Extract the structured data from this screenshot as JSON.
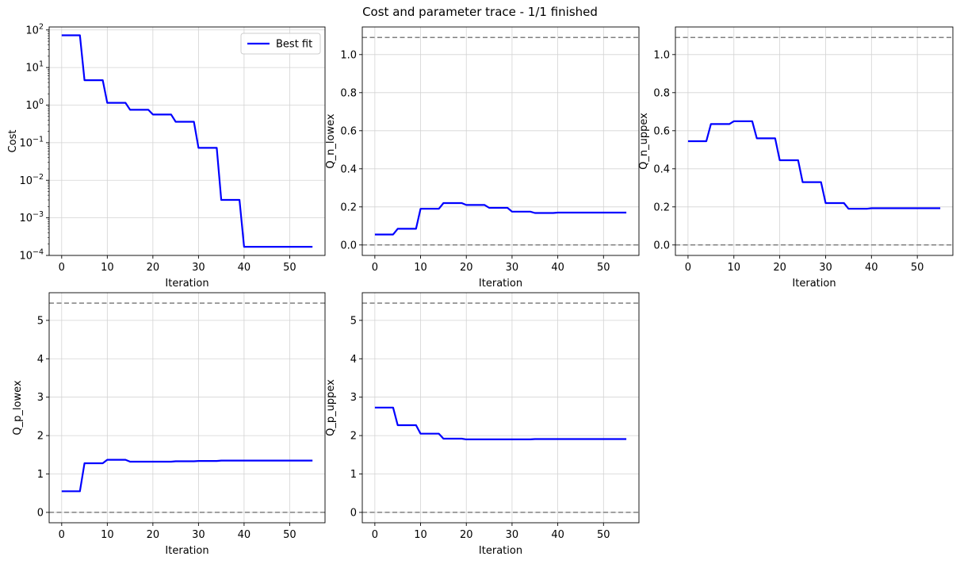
{
  "figure": {
    "suptitle": "Cost and parameter trace - 1/1 finished"
  },
  "colors": {
    "series": "#0000ff",
    "bounds": "#808080",
    "grid": "#d3d3d3"
  },
  "chart_data": [
    {
      "type": "line",
      "xlabel": "Iteration",
      "ylabel": "Cost",
      "yscale": "log",
      "xlim": [
        -2.75,
        57.75
      ],
      "ylim": [
        0.0001,
        120
      ],
      "xticks": [
        0,
        10,
        20,
        30,
        40,
        50
      ],
      "yticks": [
        0.0001,
        0.001,
        0.01,
        0.1,
        1,
        10,
        100
      ],
      "ytick_labels": [
        "10^-4",
        "10^-3",
        "10^-2",
        "10^-1",
        "10^0",
        "10^1",
        "10^2"
      ],
      "grid": true,
      "legend": {
        "position": "top-right",
        "entries": [
          "Best fit"
        ]
      },
      "series": [
        {
          "name": "Best fit",
          "x": [
            0,
            4,
            5,
            9,
            10,
            14,
            15,
            19,
            20,
            24,
            25,
            29,
            30,
            34,
            35,
            39,
            40,
            55
          ],
          "y": [
            72,
            72,
            4.6,
            4.6,
            1.15,
            1.15,
            0.75,
            0.75,
            0.56,
            0.56,
            0.36,
            0.36,
            0.073,
            0.073,
            0.003,
            0.003,
            0.00017,
            0.00017
          ]
        }
      ],
      "hlines": []
    },
    {
      "type": "line",
      "xlabel": "Iteration",
      "ylabel": "Q_n_lowex",
      "yscale": "linear",
      "xlim": [
        -2.75,
        57.75
      ],
      "ylim": [
        -0.055,
        1.145
      ],
      "xticks": [
        0,
        10,
        20,
        30,
        40,
        50
      ],
      "yticks": [
        0.0,
        0.2,
        0.4,
        0.6,
        0.8,
        1.0
      ],
      "ytick_labels": [
        "0.0",
        "0.2",
        "0.4",
        "0.6",
        "0.8",
        "1.0"
      ],
      "grid": true,
      "series": [
        {
          "x": [
            0,
            4,
            5,
            9,
            10,
            14,
            15,
            19,
            20,
            24,
            25,
            29,
            30,
            34,
            35,
            39,
            40,
            55
          ],
          "y": [
            0.055,
            0.055,
            0.085,
            0.085,
            0.19,
            0.19,
            0.22,
            0.22,
            0.21,
            0.21,
            0.195,
            0.195,
            0.175,
            0.175,
            0.168,
            0.168,
            0.17,
            0.17
          ]
        }
      ],
      "hlines": [
        0.0,
        1.09
      ]
    },
    {
      "type": "line",
      "xlabel": "Iteration",
      "ylabel": "Q_n_uppex",
      "yscale": "linear",
      "xlim": [
        -2.75,
        57.75
      ],
      "ylim": [
        -0.055,
        1.145
      ],
      "xticks": [
        0,
        10,
        20,
        30,
        40,
        50
      ],
      "yticks": [
        0.0,
        0.2,
        0.4,
        0.6,
        0.8,
        1.0
      ],
      "ytick_labels": [
        "0.0",
        "0.2",
        "0.4",
        "0.6",
        "0.8",
        "1.0"
      ],
      "grid": true,
      "series": [
        {
          "x": [
            0,
            4,
            5,
            9,
            10,
            14,
            15,
            19,
            20,
            24,
            25,
            29,
            30,
            34,
            35,
            39,
            40,
            55
          ],
          "y": [
            0.545,
            0.545,
            0.635,
            0.635,
            0.65,
            0.65,
            0.56,
            0.56,
            0.445,
            0.445,
            0.33,
            0.33,
            0.22,
            0.22,
            0.19,
            0.19,
            0.193,
            0.193
          ]
        }
      ],
      "hlines": [
        0.0,
        1.09
      ]
    },
    {
      "type": "line",
      "xlabel": "Iteration",
      "ylabel": "Q_p_lowex",
      "yscale": "linear",
      "xlim": [
        -2.75,
        57.75
      ],
      "ylim": [
        -0.27,
        5.72
      ],
      "xticks": [
        0,
        10,
        20,
        30,
        40,
        50
      ],
      "yticks": [
        0,
        1,
        2,
        3,
        4,
        5
      ],
      "ytick_labels": [
        "0",
        "1",
        "2",
        "3",
        "4",
        "5"
      ],
      "grid": true,
      "series": [
        {
          "x": [
            0,
            4,
            5,
            9,
            10,
            14,
            15,
            19,
            20,
            24,
            25,
            29,
            30,
            34,
            35,
            39,
            40,
            55
          ],
          "y": [
            0.55,
            0.55,
            1.28,
            1.28,
            1.37,
            1.37,
            1.32,
            1.32,
            1.32,
            1.32,
            1.33,
            1.33,
            1.34,
            1.34,
            1.35,
            1.35,
            1.35,
            1.35
          ]
        }
      ],
      "hlines": [
        0.0,
        5.45
      ]
    },
    {
      "type": "line",
      "xlabel": "Iteration",
      "ylabel": "Q_p_uppex",
      "yscale": "linear",
      "xlim": [
        -2.75,
        57.75
      ],
      "ylim": [
        -0.27,
        5.72
      ],
      "xticks": [
        0,
        10,
        20,
        30,
        40,
        50
      ],
      "yticks": [
        0,
        1,
        2,
        3,
        4,
        5
      ],
      "ytick_labels": [
        "0",
        "1",
        "2",
        "3",
        "4",
        "5"
      ],
      "grid": true,
      "series": [
        {
          "x": [
            0,
            4,
            5,
            9,
            10,
            14,
            15,
            19,
            20,
            24,
            25,
            29,
            30,
            34,
            35,
            39,
            40,
            55
          ],
          "y": [
            2.73,
            2.73,
            2.27,
            2.27,
            2.05,
            2.05,
            1.92,
            1.92,
            1.9,
            1.9,
            1.9,
            1.9,
            1.9,
            1.9,
            1.91,
            1.91,
            1.91,
            1.91
          ]
        }
      ],
      "hlines": [
        0.0,
        5.45
      ]
    }
  ]
}
